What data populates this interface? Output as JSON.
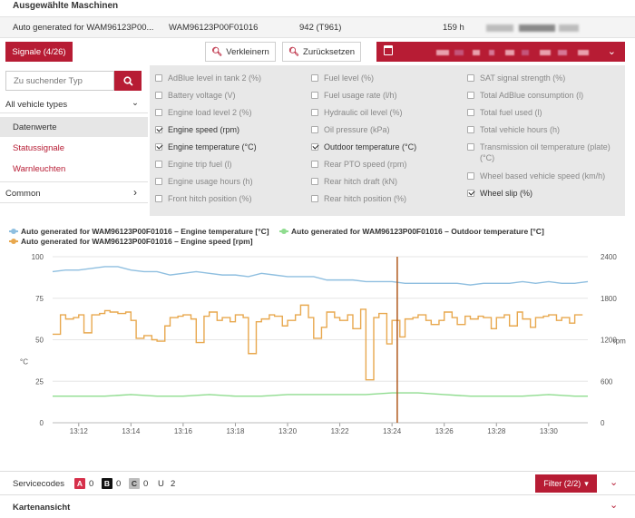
{
  "header": {
    "title": "Ausgewählte Maschinen"
  },
  "machine": {
    "name": "Auto generated for WAM96123P00...",
    "serial": "WAM96123P00F01016",
    "model": "942 (T961)",
    "hours": "159 h"
  },
  "toolbar": {
    "signals_label": "Signale (4/26)",
    "zoom_out_label": "Verkleinern",
    "reset_label": "Zurücksetzen"
  },
  "search": {
    "placeholder": "Zu suchender Typ"
  },
  "filter_panel": {
    "vehicle_types_label": "All vehicle types",
    "categories": [
      {
        "label": "Datenwerte",
        "selected": true
      },
      {
        "label": "Statussignale",
        "selected": false
      },
      {
        "label": "Warnleuchten",
        "selected": false
      }
    ],
    "common_label": "Common"
  },
  "signals": {
    "col1": [
      {
        "label": "AdBlue level in tank 2 (%)",
        "checked": false
      },
      {
        "label": "Battery voltage (V)",
        "checked": false
      },
      {
        "label": "Engine load level 2 (%)",
        "checked": false
      },
      {
        "label": "Engine speed (rpm)",
        "checked": true
      },
      {
        "label": "Engine temperature (°C)",
        "checked": true
      },
      {
        "label": "Engine trip fuel (l)",
        "checked": false
      },
      {
        "label": "Engine usage hours (h)",
        "checked": false
      },
      {
        "label": "Front hitch position (%)",
        "checked": false
      }
    ],
    "col2": [
      {
        "label": "Fuel level (%)",
        "checked": false
      },
      {
        "label": "Fuel usage rate (l/h)",
        "checked": false
      },
      {
        "label": "Hydraulic oil level (%)",
        "checked": false
      },
      {
        "label": "Oil pressure (kPa)",
        "checked": false
      },
      {
        "label": "Outdoor temperature (°C)",
        "checked": true
      },
      {
        "label": "Rear PTO speed (rpm)",
        "checked": false
      },
      {
        "label": "Rear hitch draft (kN)",
        "checked": false
      },
      {
        "label": "Rear hitch position (%)",
        "checked": false
      }
    ],
    "col3": [
      {
        "label": "SAT signal strength (%)",
        "checked": false
      },
      {
        "label": "Total AdBlue consumption (l)",
        "checked": false
      },
      {
        "label": "Total fuel used (l)",
        "checked": false
      },
      {
        "label": "Total vehicle hours (h)",
        "checked": false
      },
      {
        "label": "Transmission oil temperature (plate) (°C)",
        "checked": false
      },
      {
        "label": "Wheel based vehicle speed (km/h)",
        "checked": false
      },
      {
        "label": "Wheel slip (%)",
        "checked": true
      }
    ]
  },
  "legend": {
    "series1": "Auto generated for WAM96123P00F01016 – Engine temperature [°C]",
    "series2": "Auto generated for WAM96123P00F01016 – Outdoor temperature [°C]",
    "series3": "Auto generated for WAM96123P00F01016 – Engine speed [rpm]"
  },
  "service_codes": {
    "label": "Servicecodes",
    "a_label": "A",
    "a_count": "0",
    "b_label": "B",
    "b_count": "0",
    "c_label": "C",
    "c_count": "0",
    "u_label": "U",
    "u_count": "2",
    "filter_label": "Filter (2/2)"
  },
  "map_section": {
    "label": "Kartenansicht"
  },
  "colors": {
    "accent": "#b71c34",
    "engine_temp": "#8fbfe0",
    "outdoor_temp": "#8fdc8f",
    "engine_speed": "#e8a84e",
    "cursor": "#b05a1e"
  },
  "chart_data": {
    "type": "line",
    "x_ticks": [
      "13:12",
      "13:14",
      "13:16",
      "13:18",
      "13:20",
      "13:22",
      "13:24",
      "13:26",
      "13:28",
      "13:30"
    ],
    "x_range": [
      "13:11",
      "13:31:30"
    ],
    "y_left": {
      "label": "°C",
      "ticks": [
        "0",
        "25",
        "50",
        "75",
        "100"
      ],
      "range": [
        0,
        100
      ]
    },
    "y_right": {
      "label": "rpm",
      "ticks": [
        "0",
        "600",
        "1200",
        "1800",
        "2400"
      ],
      "range": [
        0,
        2400
      ]
    },
    "cursor_time": "13:24",
    "series": [
      {
        "name": "Auto generated for WAM96123P00F01016 – Engine temperature [°C]",
        "axis": "left",
        "color": "#8fbfe0",
        "x": [
          0,
          0.5,
          1,
          1.5,
          2,
          2.5,
          3,
          3.5,
          4,
          4.5,
          5,
          5.5,
          6,
          6.5,
          7,
          7.5,
          8,
          8.5,
          9,
          9.5,
          10,
          10.5,
          11,
          11.5,
          12,
          12.5,
          13,
          13.5,
          14,
          14.5,
          15,
          15.5,
          16,
          16.5,
          17,
          17.5,
          18,
          18.5,
          19,
          19.5,
          20,
          20.5
        ],
        "y": [
          91,
          92,
          92,
          93,
          94,
          94,
          92,
          91,
          91,
          89,
          90,
          91,
          90,
          89,
          89,
          88,
          90,
          89,
          88,
          88,
          88,
          86,
          86,
          86,
          85,
          85,
          85,
          84,
          84,
          84,
          84,
          84,
          83,
          84,
          84,
          84,
          85,
          84,
          85,
          84,
          84,
          85
        ]
      },
      {
        "name": "Auto generated for WAM96123P00F01016 – Outdoor temperature [°C]",
        "axis": "left",
        "color": "#8fdc8f",
        "x": [
          0,
          1,
          2,
          3,
          4,
          5,
          6,
          7,
          8,
          9,
          10,
          11,
          12,
          13,
          14,
          15,
          16,
          17,
          18,
          19,
          20,
          20.5
        ],
        "y": [
          16,
          16,
          16,
          17,
          16,
          16,
          17,
          16,
          16,
          17,
          17,
          17,
          17,
          18,
          18,
          17,
          16,
          16,
          16,
          17,
          16,
          16
        ]
      },
      {
        "name": "Auto generated for WAM96123P00F01016 – Engine speed [rpm]",
        "axis": "right",
        "color": "#e8a84e",
        "x": [
          0,
          0.3,
          0.5,
          0.8,
          1,
          1.2,
          1.5,
          1.8,
          2,
          2.2,
          2.5,
          2.8,
          3,
          3.2,
          3.5,
          3.8,
          4,
          4.3,
          4.5,
          4.8,
          5,
          5.3,
          5.5,
          5.8,
          6,
          6.3,
          6.5,
          6.8,
          7,
          7.3,
          7.5,
          7.8,
          8,
          8.3,
          8.5,
          8.8,
          9,
          9.3,
          9.5,
          9.8,
          10,
          10.3,
          10.5,
          10.8,
          11,
          11.3,
          11.5,
          11.8,
          12,
          12.3,
          12.5,
          12.8,
          13,
          13.3,
          13.5,
          13.8,
          14,
          14.3,
          14.5,
          14.8,
          15,
          15.3,
          15.5,
          15.8,
          16,
          16.3,
          16.5,
          16.8,
          17,
          17.3,
          17.5,
          17.8,
          18,
          18.3,
          18.5,
          18.8,
          19,
          19.3,
          19.5,
          19.8,
          20,
          20.3
        ],
        "y": [
          1280,
          1560,
          1500,
          1520,
          1560,
          1300,
          1560,
          1580,
          1620,
          1600,
          1580,
          1600,
          1480,
          1220,
          1260,
          1200,
          1180,
          1400,
          1520,
          1540,
          1560,
          1500,
          1160,
          1540,
          1600,
          1480,
          1520,
          1460,
          1560,
          1520,
          1000,
          1460,
          1500,
          1560,
          1540,
          1400,
          1480,
          1560,
          1700,
          1520,
          1220,
          1380,
          1600,
          1520,
          1480,
          1560,
          1360,
          1640,
          620,
          1520,
          1580,
          1140,
          1480,
          1240,
          1500,
          1520,
          1560,
          1480,
          1420,
          1480,
          1600,
          1520,
          1420,
          1540,
          1500,
          1540,
          1520,
          1360,
          1520,
          1560,
          1400,
          1600,
          1500,
          1380,
          1520,
          1540,
          1560,
          1480,
          1520,
          1440,
          1560,
          1560
        ]
      }
    ]
  }
}
